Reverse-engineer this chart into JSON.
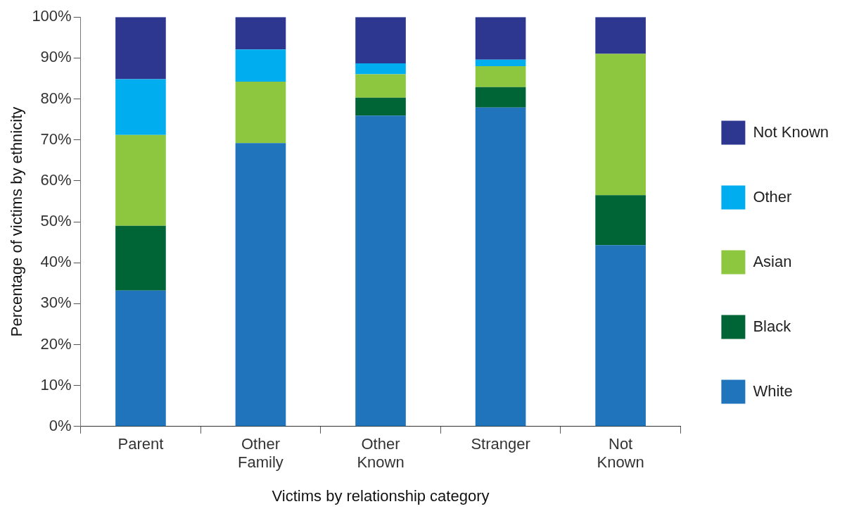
{
  "chart_data": {
    "type": "bar",
    "stacked": true,
    "xlabel": "Victims by relationship category",
    "ylabel": "Percentage of victims by ethnicity",
    "categories": [
      "Parent",
      "Other Family",
      "Other Known",
      "Stranger",
      "Not Known"
    ],
    "series": [
      {
        "name": "White",
        "color": "#1f74bb",
        "values": [
          33.2,
          69.2,
          75.9,
          77.9,
          44.3
        ]
      },
      {
        "name": "Black",
        "color": "#006536",
        "values": [
          15.8,
          0,
          4.4,
          5.0,
          12.2
        ]
      },
      {
        "name": "Asian",
        "color": "#8dc63f",
        "values": [
          22.2,
          15.0,
          5.7,
          5.1,
          34.5
        ]
      },
      {
        "name": "Other",
        "color": "#00aeef",
        "values": [
          13.6,
          7.9,
          2.7,
          1.6,
          0
        ]
      },
      {
        "name": "Not Known",
        "color": "#2e3790",
        "values": [
          15.2,
          7.9,
          11.3,
          10.4,
          9.0
        ]
      }
    ],
    "ylim": [
      0,
      100
    ],
    "yticks": [
      {
        "value": 0,
        "label": "0%"
      },
      {
        "value": 10,
        "label": "10%"
      },
      {
        "value": 20,
        "label": "20%"
      },
      {
        "value": 30,
        "label": "30%"
      },
      {
        "value": 40,
        "label": "40%"
      },
      {
        "value": 50,
        "label": "50%"
      },
      {
        "value": 60,
        "label": "60%"
      },
      {
        "value": 70,
        "label": "70%"
      },
      {
        "value": 80,
        "label": "80%"
      },
      {
        "value": 90,
        "label": "90%"
      },
      {
        "value": 100,
        "label": "100%"
      }
    ],
    "grid": false,
    "legend": "right"
  }
}
